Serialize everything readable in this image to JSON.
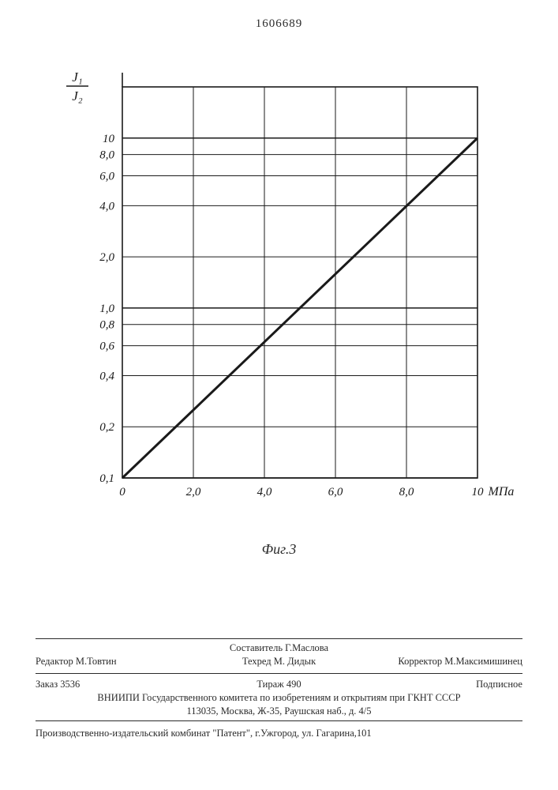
{
  "document_number": "1606689",
  "chart": {
    "type": "line",
    "y_axis": {
      "label_top": "J₁",
      "label_bottom": "J₂",
      "scale": "log",
      "min": 0.1,
      "max": 20,
      "ticks": [
        0.1,
        0.2,
        0.4,
        0.6,
        0.8,
        1.0,
        2.0,
        4.0,
        6.0,
        8.0,
        10
      ],
      "tick_labels": [
        "0,1",
        "0,2",
        "0,4",
        "0,6",
        "0,8",
        "1,0",
        "2,0",
        "4,0",
        "6,0",
        "8,0",
        "10"
      ],
      "major_grid_at": [
        0.1,
        1.0,
        10
      ],
      "tick_fontsize": 15,
      "label_fontsize": 17
    },
    "x_axis": {
      "label": "МПа",
      "scale": "linear",
      "min": 0,
      "max": 10,
      "ticks": [
        0,
        2.0,
        4.0,
        6.0,
        8.0,
        10
      ],
      "tick_labels": [
        "0",
        "2,0",
        "4,0",
        "6,0",
        "8,0",
        "10"
      ],
      "tick_fontsize": 15,
      "label_fontsize": 16
    },
    "series": {
      "points": [
        [
          0,
          0.1
        ],
        [
          10,
          10
        ]
      ],
      "color": "#1a1a1a",
      "line_width": 3
    },
    "grid_color": "#1a1a1a",
    "grid_line_width_major": 1.6,
    "grid_line_width_minor": 1,
    "background_color": "#ffffff",
    "figure_caption": "Фиг.3"
  },
  "footer": {
    "compiler": "Составитель Г.Маслова",
    "editor": "Редактор М.Товтин",
    "techred": "Техред М. Дидык",
    "corrector": "Корректор М.Максимишинец",
    "order": "Заказ 3536",
    "circulation": "Тираж 490",
    "subscription": "Подписное",
    "institute_line1": "ВНИИПИ Государственного комитета по изобретениям и открытиям при ГКНТ СССР",
    "institute_line2": "113035, Москва, Ж-35, Раушская наб., д. 4/5",
    "printer": "Производственно-издательский комбинат \"Патент\", г.Ужгород, ул. Гагарина,101"
  }
}
